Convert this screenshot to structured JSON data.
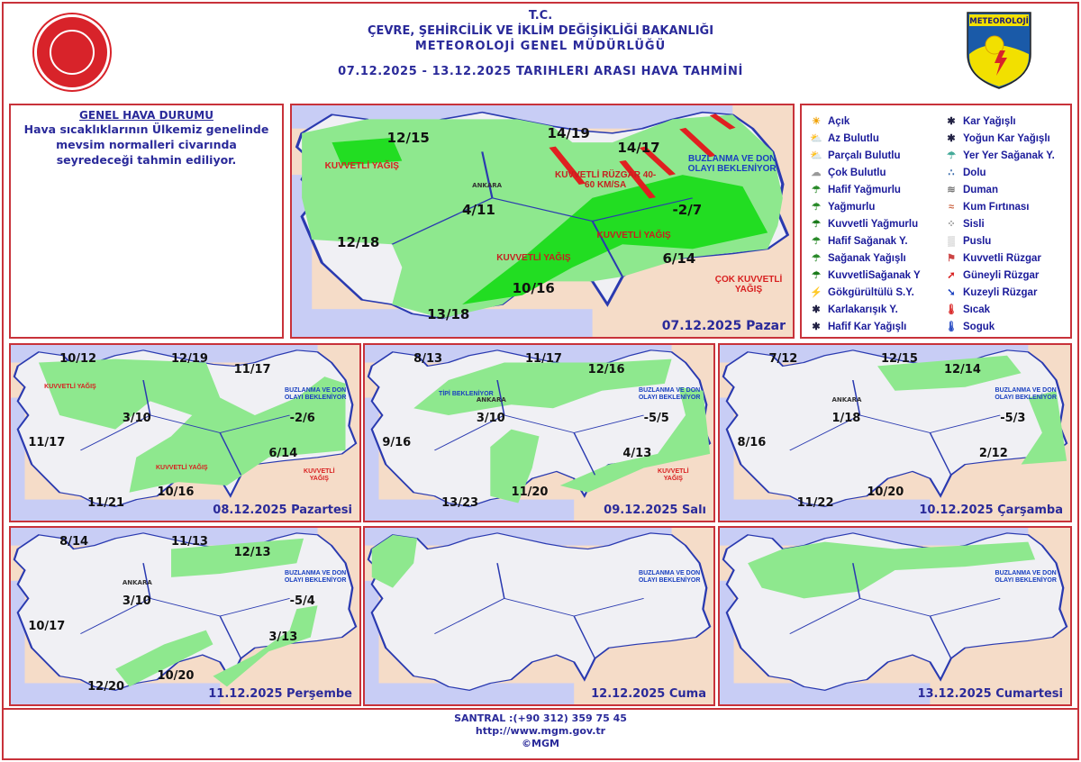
{
  "header": {
    "line1": "T.C.",
    "line2": "ÇEVRE, ŞEHİRCİLİK VE İKLİM DEĞİŞİKLİĞİ BAKANLIĞI",
    "line3": "METEOROLOJİ  GENEL  MÜDÜRLÜĞÜ",
    "line4": "07.12.2025  -  13.12.2025   TARIHLERI  ARASI  HAVA  TAHMİNİ",
    "logo_right_text": "METEOROLOJİ"
  },
  "general": {
    "title": "GENEL HAVA DURUMU",
    "body": "Hava sıcaklıklarının Ülkemiz genelinde mevsim normalleri civarında seyredeceği tahmin ediliyor."
  },
  "legend": {
    "left": [
      {
        "icon": "sun-icon",
        "label": "Açık"
      },
      {
        "icon": "sun-small-cloud-icon",
        "label": "Az Bulutlu"
      },
      {
        "icon": "sun-cloud-icon",
        "label": "Parçalı Bulutlu"
      },
      {
        "icon": "cloud-icon",
        "label": "Çok Bulutlu"
      },
      {
        "icon": "light-rain-icon",
        "label": "Hafif Yağmurlu"
      },
      {
        "icon": "rain-icon",
        "label": "Yağmurlu"
      },
      {
        "icon": "heavy-rain-icon",
        "label": "Kuvvetli Yağmurlu"
      },
      {
        "icon": "light-shower-icon",
        "label": "Hafif Sağanak Y."
      },
      {
        "icon": "shower-icon",
        "label": "Sağanak Yağışlı"
      },
      {
        "icon": "heavy-shower-icon",
        "label": "KuvvetliSağanak Y"
      },
      {
        "icon": "thunderstorm-icon",
        "label": "Gökgürültülü S.Y."
      },
      {
        "icon": "sleet-icon",
        "label": "Karlakarışık Y."
      },
      {
        "icon": "light-snow-icon",
        "label": "Hafif Kar Yağışlı"
      }
    ],
    "right": [
      {
        "icon": "snow-icon",
        "label": "Kar Yağışlı"
      },
      {
        "icon": "heavy-snow-icon",
        "label": "Yoğun Kar Yağışlı"
      },
      {
        "icon": "scattered-shower-icon",
        "label": "Yer Yer Sağanak Y."
      },
      {
        "icon": "hail-icon",
        "label": "Dolu"
      },
      {
        "icon": "smoke-icon",
        "label": "Duman"
      },
      {
        "icon": "sandstorm-icon",
        "label": "Kum Fırtınası"
      },
      {
        "icon": "fog-icon",
        "label": "Sisli"
      },
      {
        "icon": "mist-icon",
        "label": "Puslu"
      },
      {
        "icon": "strong-wind-icon",
        "label": "Kuvvetli Rüzgar"
      },
      {
        "icon": "south-wind-arrow-icon",
        "label": "Güneyli Rüzgar"
      },
      {
        "icon": "north-wind-arrow-icon",
        "label": "Kuzeyli Rüzgar"
      },
      {
        "icon": "hot-thermometer-icon",
        "label": "Sıcak"
      },
      {
        "icon": "cold-thermometer-icon",
        "label": "Soguk"
      }
    ]
  },
  "maps": [
    {
      "date": "07.12.2025 Pazar",
      "temps": [
        "12/15",
        "14/19",
        "14/17",
        "4/11",
        "-2/7",
        "12/18",
        "6/14",
        "10/16",
        "13/18"
      ],
      "notes": [
        "KUVVETLİ YAĞIŞ",
        "KUVVETLİ RÜZGAR 40-60 KM/SA",
        "BUZLANMA VE DON OLAYI BEKLENİYOR",
        "KUVVETLİ YAĞIŞ",
        "KUVVETLİ YAĞIŞ",
        "ÇOK KUVVETLİ YAĞIŞ"
      ],
      "city": "ANKARA"
    },
    {
      "date": "08.12.2025 Pazartesi",
      "temps": [
        "10/12",
        "12/19",
        "11/17",
        "3/10",
        "-2/6",
        "11/17",
        "6/14",
        "10/16",
        "11/21"
      ],
      "notes": [
        "KUVVETLİ YAĞIŞ",
        "BUZLANMA VE DON OLAYI BEKLENİYOR",
        "KUVVETLİ YAĞIŞ",
        "KUVVETLİ YAĞIŞ"
      ]
    },
    {
      "date": "09.12.2025 Salı",
      "temps": [
        "8/13",
        "11/17",
        "12/16",
        "3/10",
        "-5/5",
        "9/16",
        "4/13",
        "11/20",
        "13/23"
      ],
      "notes": [
        "TİPİ BEKLENİYOR",
        "BUZLANMA VE DON OLAYI BEKLENİYOR",
        "KUVVETLİ YAĞIŞ"
      ],
      "city": "ANKARA"
    },
    {
      "date": "10.12.2025 Çarşamba",
      "temps": [
        "7/12",
        "12/15",
        "12/14",
        "1/18",
        "-5/3",
        "8/16",
        "2/12",
        "10/20",
        "11/22"
      ],
      "notes": [
        "BUZLANMA VE DON OLAYI BEKLENİYOR"
      ],
      "city": "ANKARA"
    },
    {
      "date": "11.12.2025 Perşembe",
      "temps": [
        "8/14",
        "11/13",
        "12/13",
        "3/10",
        "-5/4",
        "10/17",
        "3/13",
        "10/20",
        "12/20"
      ],
      "notes": [
        "BUZLANMA VE DON OLAYI BEKLENİYOR"
      ],
      "city": "ANKARA"
    },
    {
      "date": "12.12.2025 Cuma",
      "temps": [],
      "notes": [
        "BUZLANMA VE DON OLAYI BEKLENİYOR"
      ]
    },
    {
      "date": "13.12.2025 Cumartesi",
      "temps": [],
      "notes": [
        "BUZLANMA VE DON OLAYI BEKLENİYOR"
      ]
    }
  ],
  "footer": {
    "phone": "SANTRAL :(+90 312) 359 75 45",
    "url": "http://www.mgm.gov.tr",
    "copyright": "©MGM"
  },
  "colors": {
    "frame": "#c8323a",
    "text": "#2a2a9a",
    "land": "#f0f0f4",
    "precip": "#7ee07e",
    "heavy_precip": "#22dd22",
    "sea": "#c8cdf5",
    "neighbor": "#f5dcc8"
  }
}
